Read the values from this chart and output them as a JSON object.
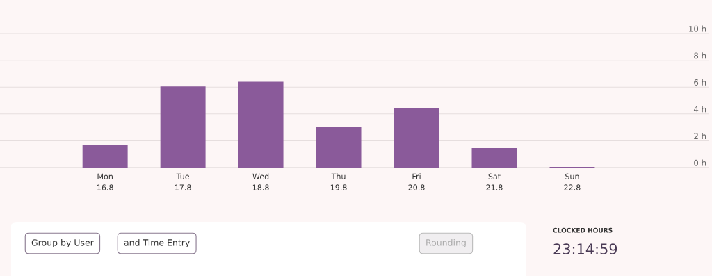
{
  "chart_data": {
    "type": "bar",
    "categories": [
      "Mon\n16.8",
      "Tue\n17.8",
      "Wed\n18.8",
      "Thu\n19.8",
      "Fri\n20.8",
      "Sat\n21.8",
      "Sun\n22.8"
    ],
    "values": [
      1.7,
      6.05,
      6.4,
      3.0,
      4.4,
      1.45,
      0.05
    ],
    "color": "#8a5a9a",
    "ylim": [
      0,
      10
    ],
    "yticks": [
      {
        "value": 0,
        "label": "0 h"
      },
      {
        "value": 2,
        "label": "2 h"
      },
      {
        "value": 4,
        "label": "4 h"
      },
      {
        "value": 6,
        "label": "6 h"
      },
      {
        "value": 8,
        "label": "8 h"
      },
      {
        "value": 10,
        "label": "10 h"
      }
    ],
    "grid": "y",
    "annotations": [
      "Group by User",
      "and Time Entry",
      "Rounding",
      "CLOCKED HOURS",
      "23:14:59"
    ]
  }
}
